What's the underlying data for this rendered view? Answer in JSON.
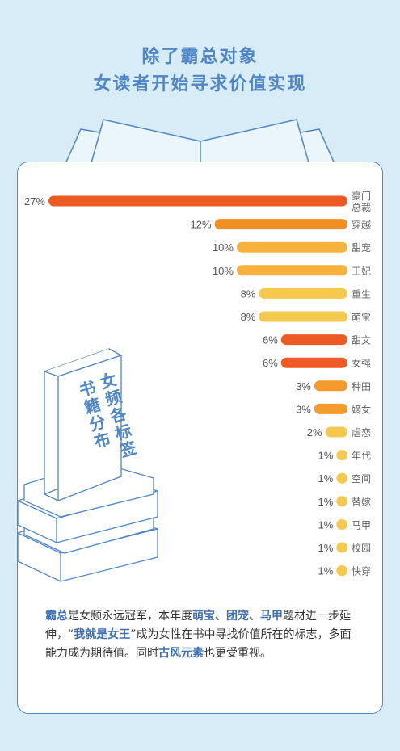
{
  "title": {
    "line1": "除了霸总对象",
    "line2": "女读者开始寻求价值实现"
  },
  "colors": {
    "background": "#d8ecf8",
    "accent": "#4f86c6",
    "bar_red": "#ee5a24",
    "bar_orange": "#f49a2b",
    "bar_light_orange": "#f7b23e",
    "bar_yellow": "#f5c94d"
  },
  "book": {
    "title": "女频各标签",
    "subtitle": "书籍分布"
  },
  "chart_data": {
    "type": "bar",
    "orientation": "horizontal",
    "categories": [
      "豪门总裁",
      "穿越",
      "甜宠",
      "王妃",
      "重生",
      "萌宝",
      "甜文",
      "女强",
      "种田",
      "嫡女",
      "虐恋",
      "年代",
      "空间",
      "替嫁",
      "马甲",
      "校园",
      "快穿"
    ],
    "values": [
      27,
      12,
      10,
      10,
      8,
      8,
      6,
      6,
      3,
      3,
      2,
      1,
      1,
      1,
      1,
      1,
      1
    ],
    "value_labels": [
      "27%",
      "12%",
      "10%",
      "10%",
      "8%",
      "8%",
      "6%",
      "6%",
      "3%",
      "3%",
      "2%",
      "1%",
      "1%",
      "1%",
      "1%",
      "1%",
      "1%"
    ],
    "bar_colors": [
      "#ee5a24",
      "#f08f22",
      "#f7b23e",
      "#f7b23e",
      "#f5c94d",
      "#f5c94d",
      "#ee5a24",
      "#ee5a24",
      "#f49a2b",
      "#f49a2b",
      "#f5c94d",
      "#f5c94d",
      "#f5c94d",
      "#f5c94d",
      "#f5c94d",
      "#f5c94d",
      "#f5c94d"
    ],
    "unit": "%",
    "xlim": [
      0,
      27
    ],
    "grid": false
  },
  "caption": {
    "p1": "霸总",
    "p2": "是女频永远冠军，本年度",
    "p3": "萌宝、团宠、马甲",
    "p4": "题材进一步延伸，“",
    "p5": "我就是女王",
    "p6": "”成为女性在书中寻找价值所在的标志，多面能力成为期待值。同时",
    "p7": "古风元素",
    "p8": "也更受重视。"
  }
}
